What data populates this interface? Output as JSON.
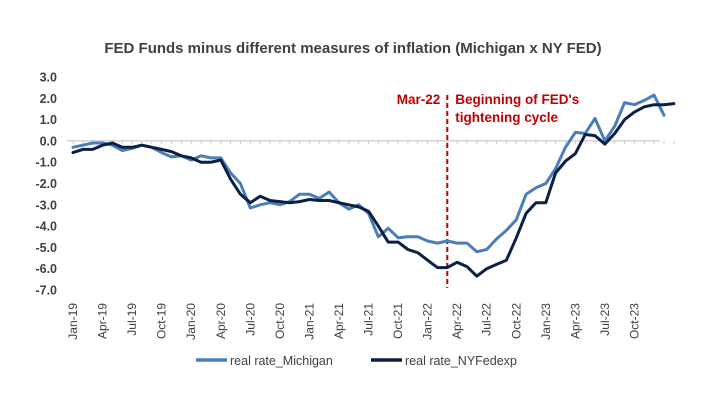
{
  "chart_data": {
    "type": "line",
    "title": "FED Funds minus different measures of inflation (Michigan x NY FED)",
    "xlabel": "",
    "ylabel": "",
    "ylim": [
      -7.0,
      3.0
    ],
    "yticks": [
      "3.0",
      "2.0",
      "1.0",
      "0.0",
      "-1.0",
      "-2.0",
      "-3.0",
      "-4.0",
      "-5.0",
      "-6.0",
      "-7.0"
    ],
    "ytick_values": [
      3,
      2,
      1,
      0,
      -1,
      -2,
      -3,
      -4,
      -5,
      -6,
      -7
    ],
    "grid": false,
    "legend_position": "bottom",
    "x_start": "Jan-19",
    "x_end": "Oct-23",
    "xticks": [
      "Jan-19",
      "Apr-19",
      "Jul-19",
      "Oct-19",
      "Jan-20",
      "Apr-20",
      "Jul-20",
      "Oct-20",
      "Jan-21",
      "Apr-21",
      "Jul-21",
      "Oct-21",
      "Jan-22",
      "Apr-22",
      "Jul-22",
      "Oct-22",
      "Jan-23",
      "Apr-23",
      "Jul-23",
      "Oct-23"
    ],
    "annotations": [
      {
        "label": "Mar-22",
        "x": "Mar-22"
      },
      {
        "label": "Beginning of FED's",
        "x": "Mar-22"
      },
      {
        "label": "tightening cycle",
        "x": "Mar-22"
      }
    ],
    "series": [
      {
        "name": "real rate_Michigan",
        "color": "#4a7ebb",
        "values": [
          -0.3,
          -0.2,
          -0.1,
          -0.1,
          -0.2,
          -0.45,
          -0.35,
          -0.2,
          -0.3,
          -0.55,
          -0.75,
          -0.7,
          -0.9,
          -0.7,
          -0.8,
          -0.8,
          -1.5,
          -2.0,
          -3.15,
          -3.0,
          -2.9,
          -3.0,
          -2.85,
          -2.5,
          -2.5,
          -2.7,
          -2.4,
          -2.9,
          -3.2,
          -3.0,
          -3.4,
          -4.5,
          -4.1,
          -4.55,
          -4.5,
          -4.5,
          -4.7,
          -4.8,
          -4.7,
          -4.8,
          -4.8,
          -5.2,
          -5.1,
          -4.6,
          -4.2,
          -3.7,
          -2.5,
          -2.2,
          -2.0,
          -1.3,
          -0.3,
          0.4,
          0.35,
          1.05,
          0.0,
          0.7,
          1.8,
          1.7,
          1.9,
          2.15,
          1.2
        ]
      },
      {
        "name": "real rate_NYFedexp",
        "color": "#0c1f45",
        "values": [
          -0.55,
          -0.4,
          -0.4,
          -0.2,
          -0.1,
          -0.3,
          -0.3,
          -0.2,
          -0.3,
          -0.4,
          -0.5,
          -0.7,
          -0.8,
          -1.0,
          -1.0,
          -0.9,
          -1.8,
          -2.5,
          -2.9,
          -2.6,
          -2.8,
          -2.85,
          -2.9,
          -2.85,
          -2.75,
          -2.8,
          -2.8,
          -2.9,
          -3.0,
          -3.1,
          -3.3,
          -4.0,
          -4.75,
          -4.75,
          -5.1,
          -5.25,
          -5.6,
          -5.95,
          -5.95,
          -5.7,
          -5.9,
          -6.35,
          -6.0,
          -5.8,
          -5.6,
          -4.55,
          -3.4,
          -2.9,
          -2.9,
          -1.5,
          -0.95,
          -0.6,
          0.3,
          0.25,
          -0.15,
          0.35,
          1.0,
          1.35,
          1.6,
          1.7,
          1.7,
          1.75
        ]
      }
    ]
  }
}
